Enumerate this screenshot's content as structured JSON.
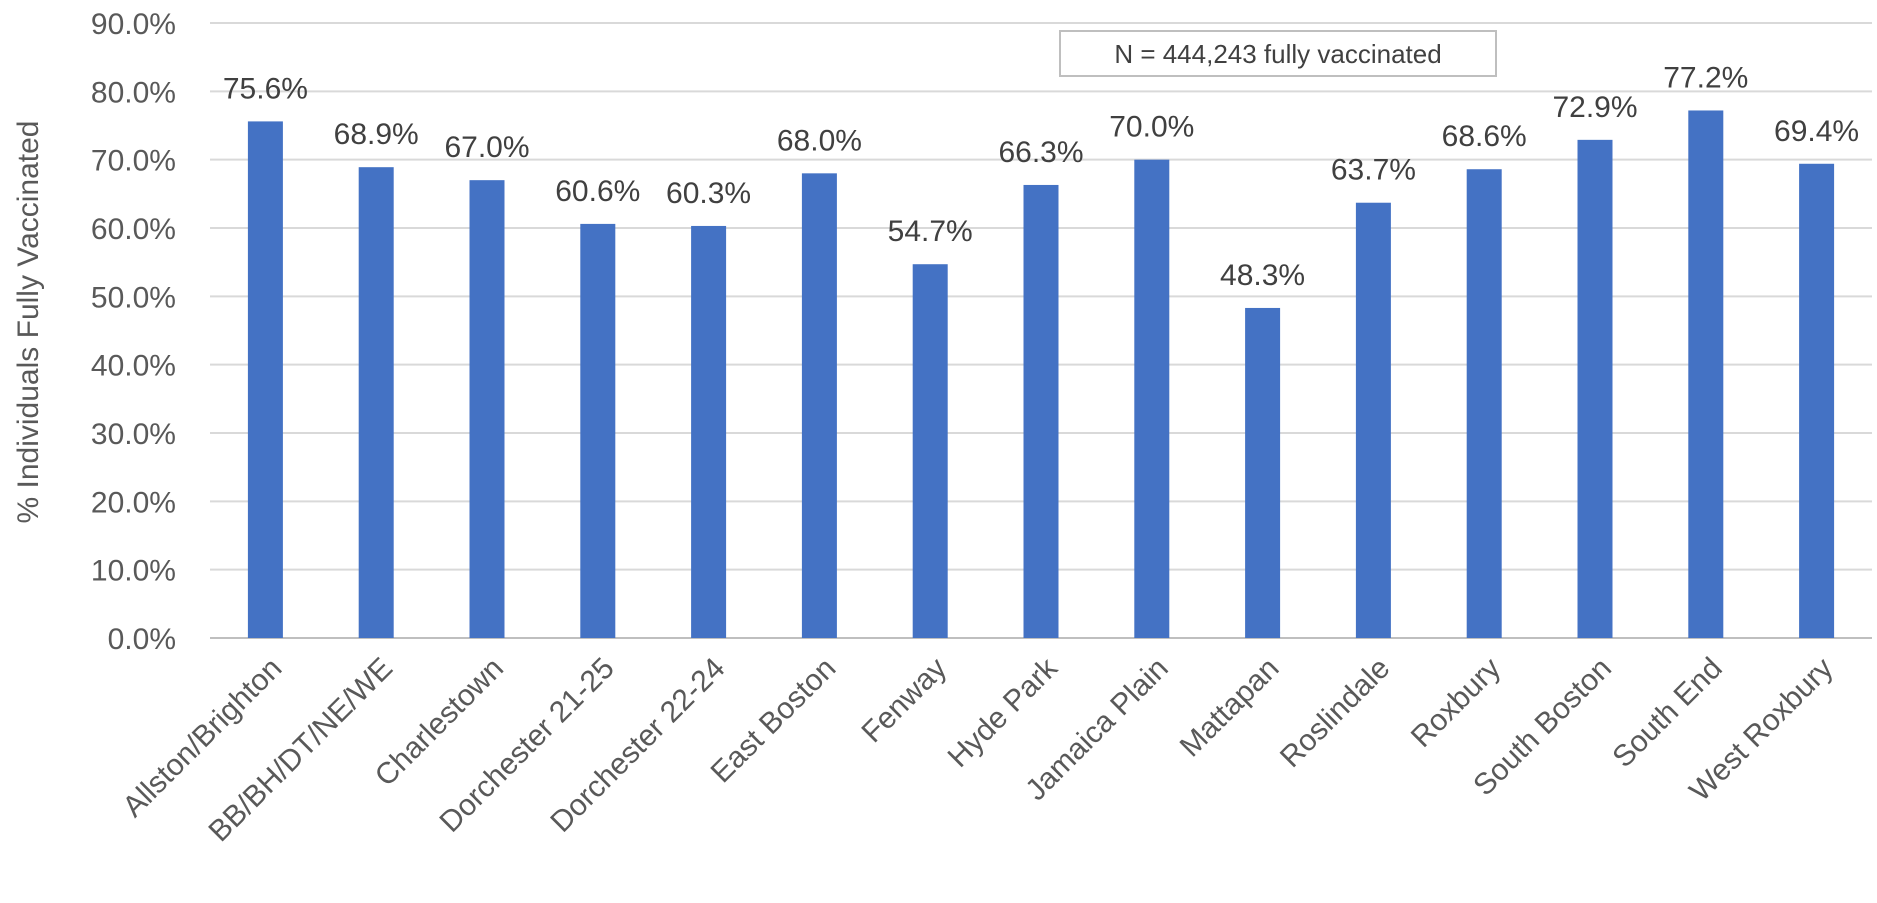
{
  "chart_data": {
    "type": "bar",
    "ylabel": "% Individuals Fully Vaccinated",
    "annotation": "N = 444,243 fully vaccinated",
    "ylim": [
      0,
      90
    ],
    "y_ticks": [
      "0.0%",
      "10.0%",
      "20.0%",
      "30.0%",
      "40.0%",
      "50.0%",
      "60.0%",
      "70.0%",
      "80.0%",
      "90.0%"
    ],
    "grid": true,
    "bar_color": "#4472C4",
    "categories": [
      "Allston/Brighton",
      "BB/BH/DT/NE/WE",
      "Charlestown",
      "Dorchester 21-25",
      "Dorchester 22-24",
      "East Boston",
      "Fenway",
      "Hyde Park",
      "Jamaica Plain",
      "Mattapan",
      "Roslindale",
      "Roxbury",
      "South Boston",
      "South End",
      "West Roxbury"
    ],
    "values": [
      75.6,
      68.9,
      67.0,
      60.6,
      60.3,
      68.0,
      54.7,
      66.3,
      70.0,
      48.3,
      63.7,
      68.6,
      72.9,
      77.2,
      69.4
    ],
    "value_labels": [
      "75.6%",
      "68.9%",
      "67.0%",
      "60.6%",
      "60.3%",
      "68.0%",
      "54.7%",
      "66.3%",
      "70.0%",
      "48.3%",
      "63.7%",
      "68.6%",
      "72.9%",
      "77.2%",
      "69.4%"
    ]
  }
}
